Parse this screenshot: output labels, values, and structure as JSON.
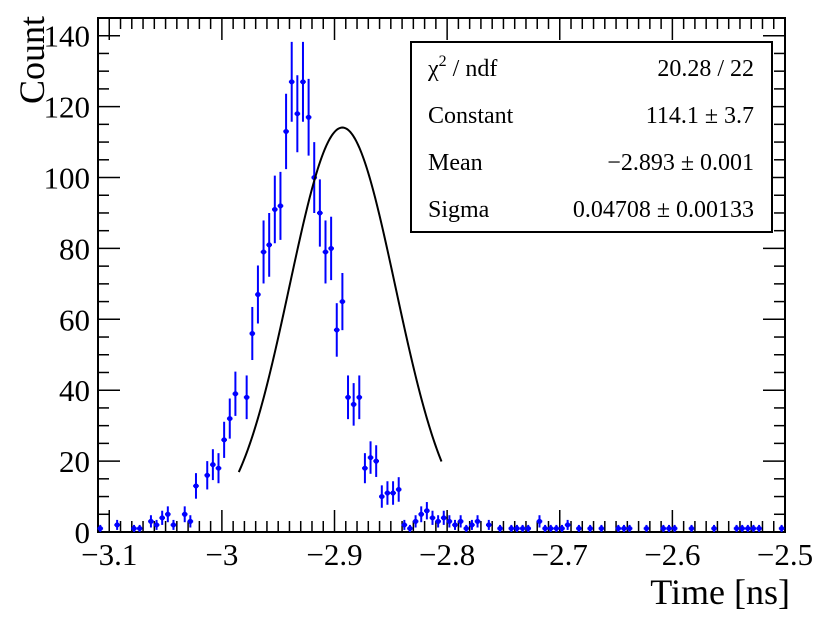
{
  "chart_data": {
    "type": "scatter",
    "title": "",
    "xlabel": "Time [ns]",
    "ylabel": "Count",
    "xlim": [
      -3.11,
      -2.5
    ],
    "ylim": [
      0,
      145
    ],
    "x_ticks": [
      -3.1,
      -3.0,
      -2.9,
      -2.8,
      -2.7,
      -2.6,
      -2.5
    ],
    "x_tick_labels": [
      "−3.1",
      "−3",
      "−2.9",
      "−2.8",
      "−2.7",
      "−2.6",
      "−2.5"
    ],
    "y_ticks": [
      0,
      20,
      40,
      60,
      80,
      100,
      120,
      140
    ],
    "y_tick_labels": [
      "0",
      "20",
      "40",
      "60",
      "80",
      "100",
      "120",
      "140"
    ],
    "series": [
      {
        "name": "data",
        "color": "#0000ff",
        "bin_width": 0.005,
        "x": [
          -3.108,
          -3.093,
          -3.078,
          -3.073,
          -3.063,
          -3.058,
          -3.053,
          -3.048,
          -3.043,
          -3.033,
          -3.028,
          -3.023,
          -3.013,
          -3.008,
          -3.003,
          -2.998,
          -2.993,
          -2.988,
          -2.978,
          -2.973,
          -2.968,
          -2.963,
          -2.958,
          -2.953,
          -2.948,
          -2.943,
          -2.938,
          -2.933,
          -2.928,
          -2.923,
          -2.918,
          -2.913,
          -2.908,
          -2.903,
          -2.898,
          -2.893,
          -2.888,
          -2.883,
          -2.878,
          -2.873,
          -2.868,
          -2.863,
          -2.858,
          -2.853,
          -2.848,
          -2.843,
          -2.838,
          -2.833,
          -2.828,
          -2.823,
          -2.818,
          -2.813,
          -2.808,
          -2.803,
          -2.798,
          -2.793,
          -2.788,
          -2.783,
          -2.778,
          -2.773,
          -2.763,
          -2.753,
          -2.743,
          -2.738,
          -2.733,
          -2.728,
          -2.718,
          -2.713,
          -2.708,
          -2.703,
          -2.698,
          -2.693,
          -2.683,
          -2.673,
          -2.663,
          -2.648,
          -2.643,
          -2.638,
          -2.623,
          -2.608,
          -2.603,
          -2.598,
          -2.583,
          -2.563,
          -2.543,
          -2.538,
          -2.533,
          -2.528,
          -2.523,
          -2.503
        ],
        "y": [
          1,
          2,
          1,
          1,
          3,
          2,
          4,
          5,
          2,
          5,
          3,
          13,
          16,
          19,
          18,
          26,
          32,
          39,
          38,
          56,
          67,
          79,
          81,
          91,
          92,
          113,
          127,
          118,
          127,
          117,
          100,
          90,
          79,
          80,
          57,
          65,
          38,
          36,
          38,
          18,
          21,
          20,
          10,
          11,
          11,
          12,
          2,
          1,
          3,
          5,
          6,
          4,
          3,
          4,
          3,
          2,
          3,
          1,
          2,
          3,
          2,
          1,
          1,
          1,
          1,
          1,
          3,
          1,
          1,
          1,
          1,
          2,
          1,
          1,
          1,
          1,
          1,
          1,
          1,
          1,
          1,
          1,
          1,
          1,
          1,
          1,
          1,
          1,
          1,
          1
        ],
        "errors": []
      }
    ],
    "fit": {
      "name": "gaus",
      "color": "#000000",
      "constant": 114.1,
      "mean": -2.893,
      "sigma": 0.04708,
      "range": [
        -2.985,
        -2.805
      ]
    },
    "stats_box": {
      "position": "top-right",
      "rows": [
        {
          "label_main": "χ",
          "label_sup": "2",
          "label_rest": " / ndf",
          "value": "20.28 / 22"
        },
        {
          "label_main": "Constant",
          "value": "114.1 ± 3.7"
        },
        {
          "label_main": "Mean",
          "value": "−2.893 ± 0.001"
        },
        {
          "label_main": "Sigma",
          "value": "0.04708 ± 0.00133"
        }
      ]
    }
  }
}
